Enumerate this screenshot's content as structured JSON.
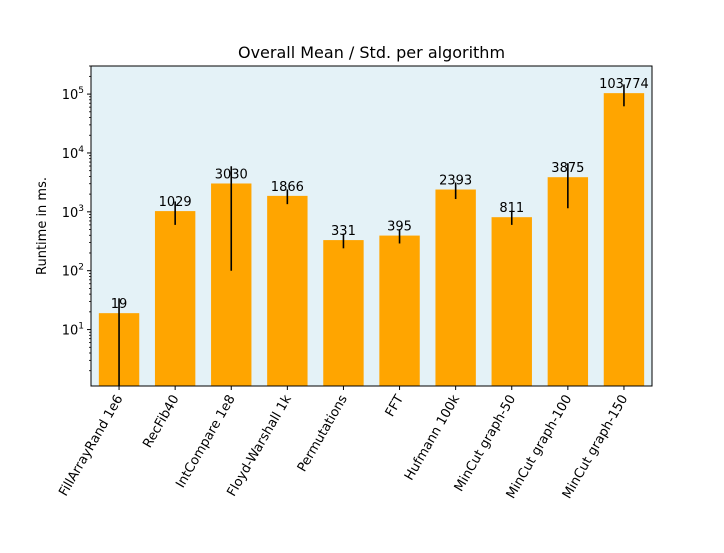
{
  "chart_data": {
    "type": "bar",
    "title": "Overall Mean / Std. per algorithm",
    "xlabel": "",
    "ylabel": "Runtime in ms.",
    "yscale": "log",
    "ylim": [
      1.1,
      300000
    ],
    "yticks": [
      {
        "value": 10,
        "base": "10",
        "exp": "1"
      },
      {
        "value": 100,
        "base": "10",
        "exp": "2"
      },
      {
        "value": 1000,
        "base": "10",
        "exp": "3"
      },
      {
        "value": 10000,
        "base": "10",
        "exp": "4"
      },
      {
        "value": 100000,
        "base": "10",
        "exp": "5"
      }
    ],
    "categories": [
      "FillArrayRand 1e6",
      "RecFib40",
      "IntCompare 1e8",
      "Floyd-Warshall 1k",
      "Permutations",
      "FFT",
      "Hufmann 100k",
      "MinCut graph-50",
      "MinCut graph-100",
      "MinCut graph-150"
    ],
    "values": [
      19,
      1029,
      3030,
      1866,
      331,
      395,
      2393,
      811,
      3875,
      103774
    ],
    "value_labels": [
      "19",
      "1029",
      "3030",
      "1866",
      "331",
      "395",
      "2393",
      "811",
      "3875",
      "103774"
    ],
    "error_low": [
      1.1,
      600,
      100,
      1350,
      240,
      290,
      1650,
      600,
      1150,
      62000
    ],
    "error_high": [
      34,
      1500,
      5960,
      2400,
      425,
      505,
      3150,
      1050,
      6700,
      146000
    ],
    "bar_color": "#ffa500",
    "errorbar_color": "#000000",
    "plot_background": "#e4f2f7",
    "grid": false,
    "legend": "none"
  }
}
